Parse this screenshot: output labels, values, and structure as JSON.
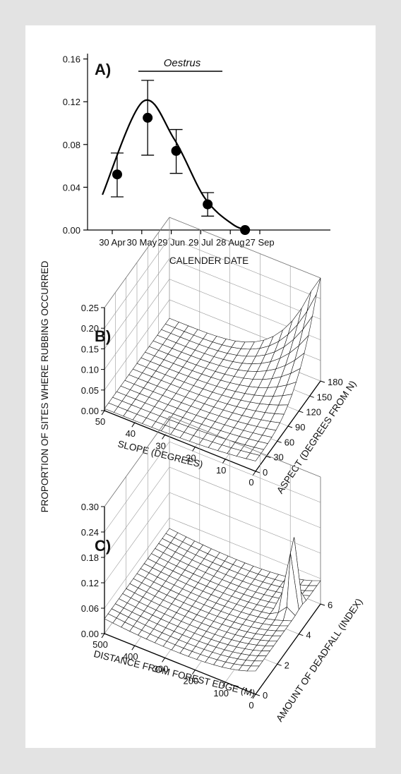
{
  "figure": {
    "ylabel": "PROPORTION OF SITES WHERE RUBBING OCCURRED"
  },
  "chart_data": [
    {
      "panel": "A)",
      "type": "scatter",
      "annotation": "Oestrus",
      "xlabel": "CALENDER DATE",
      "x_ticks": [
        "30 Apr",
        "30 May",
        "29 Jun",
        "29 Jul",
        "28 Aug",
        "27 Sep"
      ],
      "y_ticks": [
        "0.00",
        "0.04",
        "0.08",
        "0.12",
        "0.16"
      ],
      "ylim": [
        0,
        0.165
      ],
      "points": [
        {
          "x": "05 May",
          "y": 0.052,
          "err_low": 0.031,
          "err_high": 0.072
        },
        {
          "x": "05 Jun",
          "y": 0.105,
          "err_low": 0.07,
          "err_high": 0.14
        },
        {
          "x": "04 Jul",
          "y": 0.074,
          "err_low": 0.053,
          "err_high": 0.094
        },
        {
          "x": "05 Aug",
          "y": 0.024,
          "err_low": 0.013,
          "err_high": 0.035
        },
        {
          "x": "12 Sep",
          "y": 0.0,
          "err_low": 0.0,
          "err_high": 0.0
        }
      ],
      "fitted_curve": {
        "x": [
          "20 Apr",
          "31 May",
          "02 Jul",
          "02 Aug",
          "31 Aug",
          "17 Sep"
        ],
        "y": [
          0.033,
          0.12,
          0.085,
          0.03,
          0.005,
          0.0
        ]
      }
    },
    {
      "panel": "B)",
      "type": "surface",
      "z_ticks": [
        "0.00",
        "0.05",
        "0.10",
        "0.15",
        "0.20",
        "0.25"
      ],
      "x_label": "SLOPE (DEGREES)",
      "x_ticks": [
        "50",
        "40",
        "30",
        "20",
        "10",
        "0"
      ],
      "y_label": "ASPECT (DEGREES FROM N)",
      "y_ticks": [
        "0",
        "30",
        "60",
        "90",
        "120",
        "150",
        "180"
      ],
      "surface": "proportion rises toward slope 0° and aspect 180°, reaching ~0.25 at that corner; near 0 elsewhere"
    },
    {
      "panel": "C)",
      "type": "surface",
      "z_ticks": [
        "0.00",
        "0.06",
        "0.12",
        "0.18",
        "0.24",
        "0.30"
      ],
      "x_label": "DISTANCE FROM FOREST EDGE (M)",
      "x_ticks": [
        "500",
        "400",
        "300",
        "200",
        "100",
        "0"
      ],
      "y_label": "AMOUNT OF DEADFALL (INDEX)",
      "y_ticks": [
        "0",
        "2",
        "4",
        "6"
      ],
      "surface": "near 0.04 across most of the range; sharp peak of ~0.25 near distance 0 m at deadfall index ~4-5"
    }
  ]
}
